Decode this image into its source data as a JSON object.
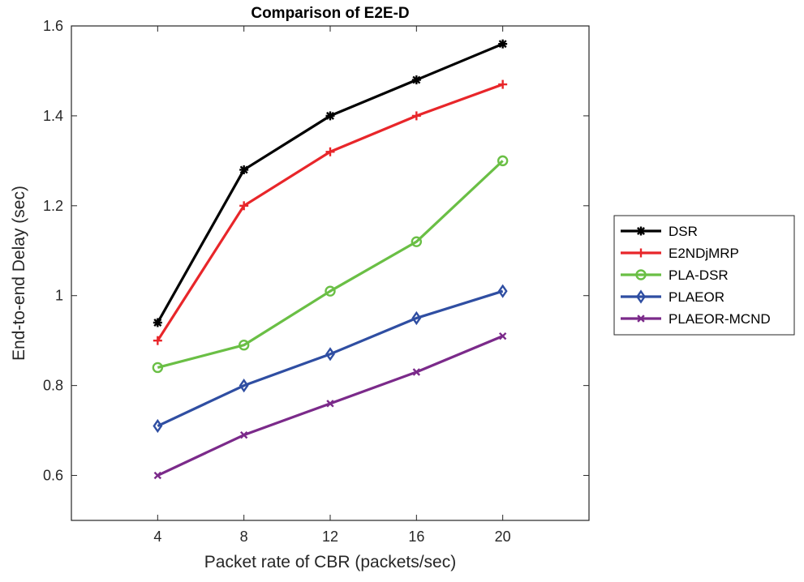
{
  "chart_data": {
    "type": "line",
    "title": "Comparison of E2E-D",
    "xlabel": "Packet rate of CBR (packets/sec)",
    "ylabel": "End-to-end Delay (sec)",
    "x": [
      4,
      8,
      12,
      16,
      20
    ],
    "xlim": [
      0,
      24
    ],
    "ylim": [
      0.5,
      1.6
    ],
    "xticks": [
      4,
      8,
      12,
      16,
      20
    ],
    "yticks": [
      0.6,
      0.8,
      1.0,
      1.2,
      1.4,
      1.6
    ],
    "ytick_labels": [
      "0.6",
      "0.8",
      "1",
      "1.2",
      "1.4",
      "1.6"
    ],
    "grid": false,
    "legend_position": "outside-right",
    "series": [
      {
        "name": "DSR",
        "values": [
          0.94,
          1.28,
          1.4,
          1.48,
          1.56
        ],
        "color": "#000000",
        "marker": "asterisk"
      },
      {
        "name": "E2NDjMRP",
        "values": [
          0.9,
          1.2,
          1.32,
          1.4,
          1.47
        ],
        "color": "#e8262a",
        "marker": "plus"
      },
      {
        "name": "PLA-DSR",
        "values": [
          0.84,
          0.89,
          1.01,
          1.12,
          1.3
        ],
        "color": "#6abf45",
        "marker": "circle"
      },
      {
        "name": "PLAEOR",
        "values": [
          0.71,
          0.8,
          0.87,
          0.95,
          1.01
        ],
        "color": "#2f4ea2",
        "marker": "diamond"
      },
      {
        "name": "PLAEOR-MCND",
        "values": [
          0.6,
          0.69,
          0.76,
          0.83,
          0.91
        ],
        "color": "#7b2a8a",
        "marker": "x"
      }
    ]
  }
}
